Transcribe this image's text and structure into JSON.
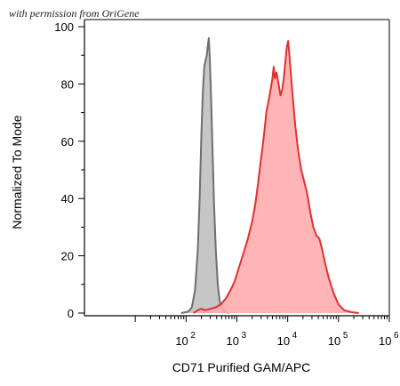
{
  "watermark": "with permission from OriGene",
  "chart_data": {
    "type": "area",
    "title": "",
    "xlabel": "CD71 Purified GAM/APC",
    "ylabel": "Normalized To Mode",
    "x_scale": "log",
    "xlim": [
      1,
      1000000
    ],
    "ylim": [
      0,
      100
    ],
    "y_ticks": [
      0,
      20,
      40,
      60,
      80,
      100
    ],
    "x_ticks": [
      {
        "value": 100,
        "base": "10",
        "exp": "2"
      },
      {
        "value": 1000,
        "base": "10",
        "exp": "3"
      },
      {
        "value": 10000,
        "base": "10",
        "exp": "4"
      },
      {
        "value": 100000,
        "base": "10",
        "exp": "5"
      },
      {
        "value": 1000000,
        "base": "10",
        "exp": "6"
      }
    ],
    "grid": false,
    "series": [
      {
        "fill": "#c0c0c0",
        "stroke": "#6e6e6e",
        "points": [
          [
            80,
            0
          ],
          [
            110,
            0.5
          ],
          [
            130,
            2
          ],
          [
            150,
            8
          ],
          [
            170,
            22
          ],
          [
            185,
            40
          ],
          [
            200,
            62
          ],
          [
            215,
            78
          ],
          [
            228,
            86
          ],
          [
            240,
            88
          ],
          [
            255,
            90
          ],
          [
            270,
            94
          ],
          [
            280,
            96
          ],
          [
            292,
            90
          ],
          [
            310,
            76
          ],
          [
            330,
            58
          ],
          [
            355,
            38
          ],
          [
            385,
            22
          ],
          [
            420,
            10
          ],
          [
            460,
            4
          ],
          [
            520,
            1.5
          ],
          [
            600,
            0.5
          ],
          [
            700,
            0
          ]
        ]
      },
      {
        "fill": "#ffadad",
        "stroke": "#e03030",
        "points": [
          [
            140,
            0
          ],
          [
            170,
            1
          ],
          [
            200,
            1.5
          ],
          [
            240,
            1
          ],
          [
            300,
            1.5
          ],
          [
            380,
            2
          ],
          [
            480,
            3
          ],
          [
            600,
            5
          ],
          [
            750,
            8
          ],
          [
            900,
            11
          ],
          [
            1100,
            16
          ],
          [
            1350,
            21
          ],
          [
            1650,
            26
          ],
          [
            2000,
            32
          ],
          [
            2300,
            38
          ],
          [
            2600,
            45
          ],
          [
            2900,
            52
          ],
          [
            3200,
            58
          ],
          [
            3500,
            64
          ],
          [
            3800,
            70
          ],
          [
            4200,
            74
          ],
          [
            4600,
            78
          ],
          [
            5000,
            82
          ],
          [
            5300,
            86
          ],
          [
            5600,
            82
          ],
          [
            6000,
            84
          ],
          [
            6600,
            80
          ],
          [
            7200,
            76
          ],
          [
            7800,
            78
          ],
          [
            8400,
            82
          ],
          [
            9000,
            88
          ],
          [
            9600,
            93
          ],
          [
            10200,
            95
          ],
          [
            10800,
            90
          ],
          [
            11500,
            84
          ],
          [
            12500,
            76
          ],
          [
            14000,
            66
          ],
          [
            16000,
            57
          ],
          [
            18500,
            50
          ],
          [
            21000,
            46
          ],
          [
            24000,
            42
          ],
          [
            28000,
            35
          ],
          [
            32000,
            30
          ],
          [
            37000,
            27
          ],
          [
            42000,
            26
          ],
          [
            48000,
            22
          ],
          [
            55000,
            17
          ],
          [
            65000,
            12
          ],
          [
            80000,
            7
          ],
          [
            100000,
            3
          ],
          [
            130000,
            1
          ],
          [
            180000,
            0.3
          ],
          [
            250000,
            0
          ]
        ]
      }
    ]
  }
}
